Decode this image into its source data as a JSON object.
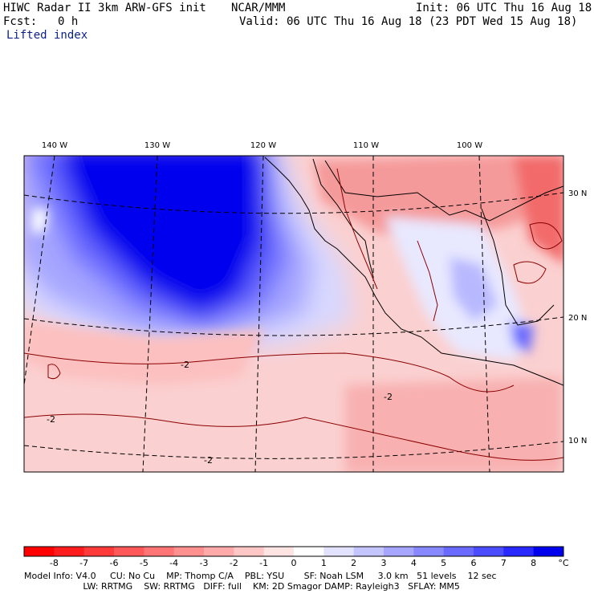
{
  "header": {
    "model_line": "HIWC Radar II 3km ARW-GFS init",
    "center": "NCAR/MMM",
    "init": "Init: 06 UTC Thu 16 Aug 18",
    "fcst_label": "Fcst:",
    "fcst_value": "0 h",
    "valid": "Valid: 06 UTC Thu 16 Aug 18 (23 PDT Wed 15 Aug 18)",
    "field": "Lifted index"
  },
  "map": {
    "lon_labels": [
      "140 W",
      "130 W",
      "120 W",
      "110 W",
      "100 W"
    ],
    "lat_labels": [
      "30 N",
      "20 N",
      "10 N"
    ],
    "contour_label": "-2",
    "colors": {
      "land_border": "#000000",
      "contour": "#8b0000",
      "strong_stable": "#0000f0",
      "unstable": "#f08a8a"
    }
  },
  "colorbar": {
    "labels": [
      "-8",
      "-7",
      "-6",
      "-5",
      "-4",
      "-3",
      "-2",
      "-1",
      "0",
      "1",
      "2",
      "3",
      "4",
      "5",
      "6",
      "7",
      "8"
    ],
    "unit": "°C",
    "colors": [
      "#ff0000",
      "#ff1c1c",
      "#ff3a3a",
      "#ff5858",
      "#ff7474",
      "#ff9090",
      "#ffaaaa",
      "#ffc6c6",
      "#ffe4e4",
      "#ffffff",
      "#e2e2ff",
      "#c4c4ff",
      "#a6a6ff",
      "#8888ff",
      "#6a6aff",
      "#4c4cff",
      "#2828ff",
      "#0000ee"
    ]
  },
  "footer": {
    "line1": "Model Info: V4.0     CU: No Cu    MP: Thomp C/A    PBL: YSU       SF: Noah LSM     3.0 km   51 levels    12 sec",
    "line2": "                     LW: RRTMG    SW: RRTMG   DIFF: full    KM: 2D Smagor DAMP: Rayleigh3   SFLAY: MM5"
  }
}
